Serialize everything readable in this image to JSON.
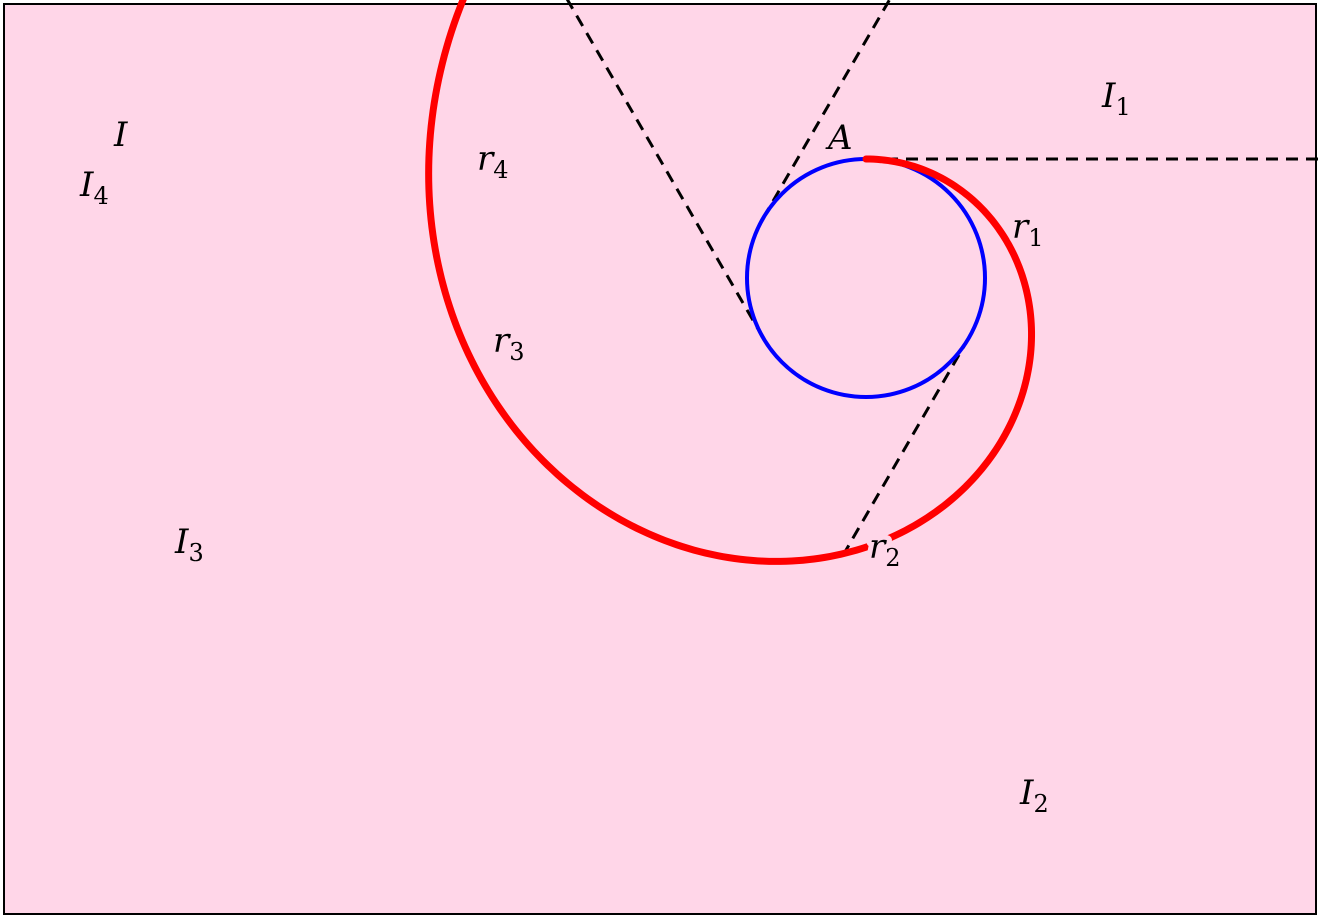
{
  "diagram": {
    "colors": {
      "background": "#ffd6e8",
      "frame": "#000000",
      "involute": "#ff0000",
      "circle": "#0000ff",
      "radius_lines": "#000000"
    },
    "points": {
      "A": {
        "name": "A",
        "sub": ""
      },
      "I": {
        "name": "I",
        "sub": ""
      },
      "I1": {
        "name": "I",
        "sub": "1"
      },
      "I2": {
        "name": "I",
        "sub": "2"
      },
      "I3": {
        "name": "I",
        "sub": "3"
      },
      "I4": {
        "name": "I",
        "sub": "4"
      }
    },
    "radii": {
      "r1": {
        "name": "r",
        "sub": "1"
      },
      "r2": {
        "name": "r",
        "sub": "2"
      },
      "r3": {
        "name": "r",
        "sub": "3"
      },
      "r4": {
        "name": "r",
        "sub": "4"
      }
    }
  }
}
